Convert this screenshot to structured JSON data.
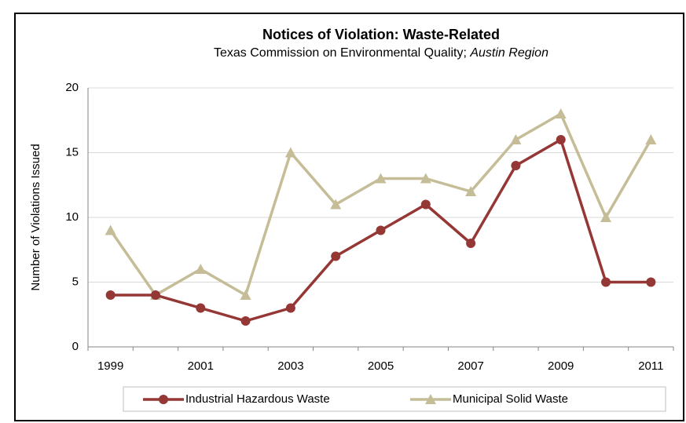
{
  "chart_data": {
    "type": "line",
    "title": "Notices of Violation: Waste-Related",
    "subtitle": [
      "Texas Commission on Environmental Quality;",
      "Austin Region"
    ],
    "y_label": "Number of Violations Issued",
    "categories": [
      "1999",
      null,
      "2001",
      null,
      "2003",
      null,
      "2005",
      null,
      "2007",
      null,
      "2009",
      null,
      "2011"
    ],
    "series": [
      {
        "name": "Industrial Hazardous Waste",
        "color": "#953735",
        "marker": "circle",
        "values": [
          4,
          4,
          3,
          2,
          3,
          7,
          9,
          11,
          8,
          14,
          16,
          5,
          5
        ]
      },
      {
        "name": "Municipal Solid Waste",
        "color": "#c4bd97",
        "marker": "triangle",
        "values": [
          9,
          4,
          6,
          4,
          15,
          11,
          13,
          13,
          12,
          16,
          18,
          10,
          16
        ]
      }
    ],
    "ylim": [
      0,
      20
    ],
    "yticks": [
      0,
      5,
      10,
      15,
      20
    ],
    "grid": true,
    "legend": "bottom"
  }
}
